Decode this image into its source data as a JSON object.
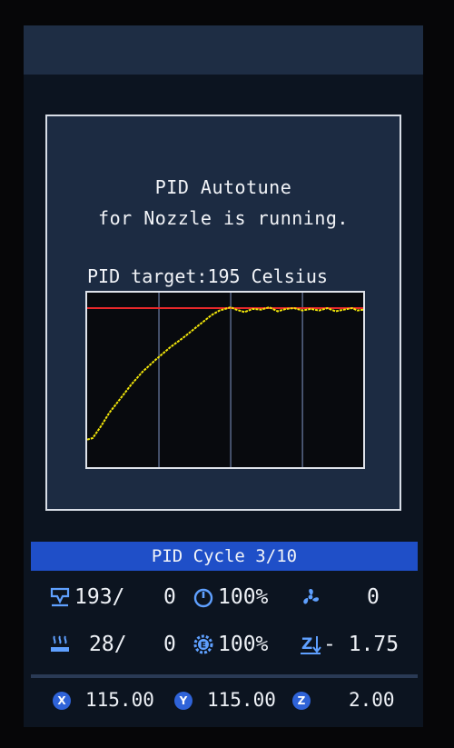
{
  "dialog": {
    "line1": "PID Autotune",
    "line2": "for Nozzle is running.",
    "target_label": "PID target:195 Celsius"
  },
  "chart_data": {
    "type": "line",
    "title": "",
    "xlabel": "",
    "ylabel": "",
    "target": 195,
    "ylim": [
      0,
      210
    ],
    "xlim": [
      0,
      100
    ],
    "grid_x": [
      26,
      52,
      78
    ],
    "series": [
      {
        "color": "#f2e60a",
        "x": [
          0,
          2,
          5,
          8,
          12,
          16,
          20,
          25,
          30,
          35,
          40,
          45,
          48,
          50,
          52,
          54,
          57,
          60,
          63,
          66,
          69,
          72,
          75,
          78,
          81,
          84,
          87,
          90,
          93,
          96,
          98,
          100
        ],
        "y": [
          28,
          30,
          45,
          62,
          80,
          98,
          114,
          130,
          145,
          158,
          172,
          186,
          192,
          194,
          196,
          193,
          190,
          194,
          193,
          196,
          191,
          194,
          195,
          192,
          194,
          192,
          195,
          191,
          193,
          195,
          192,
          193
        ]
      }
    ],
    "reference_line": {
      "color": "#e8282a",
      "y": 195
    }
  },
  "cycle": {
    "label": "PID Cycle 3/10"
  },
  "status": {
    "nozzle_temp": "193/",
    "nozzle_target": "0",
    "speed": "100%",
    "fan": "0",
    "bed_temp": "28/",
    "bed_target": "0",
    "flow": "100%",
    "z_offset": "- 1.75"
  },
  "axes": {
    "x_label": "X",
    "x": "115.00",
    "y_label": "Y",
    "y": "115.00",
    "z_label": "Z",
    "z": "2.00"
  },
  "colors": {
    "accent": "#2f63d8",
    "bar": "#1f4fc8",
    "icon": "#5fa0ff"
  }
}
